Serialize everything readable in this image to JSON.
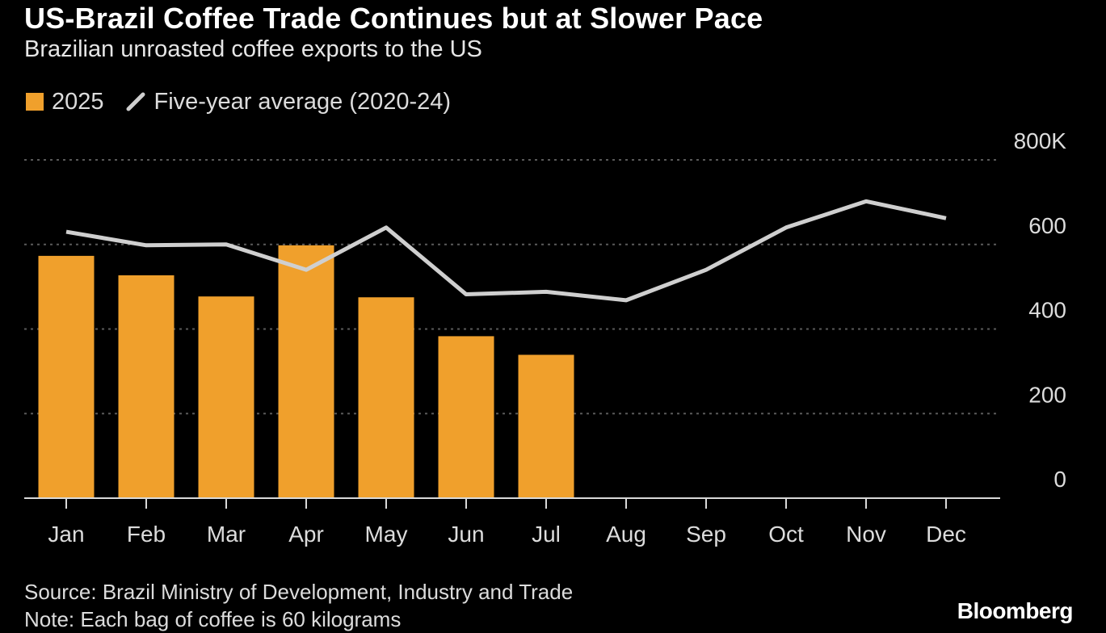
{
  "title": "US-Brazil Coffee Trade Continues but at Slower Pace",
  "subtitle": "Brazilian unroasted coffee exports to the US",
  "source": "Source: Brazil Ministry of Development, Industry and Trade",
  "note": "Note: Each bag of coffee is 60 kilograms",
  "brand": "Bloomberg",
  "colors": {
    "background": "#000000",
    "bar": "#f0a02c",
    "line": "#cfcfcf",
    "grid": "#5a5a5a",
    "axis": "#d9d9d9"
  },
  "chart_data": {
    "type": "bar",
    "categories": [
      "Jan",
      "Feb",
      "Mar",
      "Apr",
      "May",
      "Jun",
      "Jul",
      "Aug",
      "Sep",
      "Oct",
      "Nov",
      "Dec"
    ],
    "series": [
      {
        "name": "2025",
        "type": "bar",
        "values": [
          573,
          527,
          477,
          598,
          475,
          383,
          339,
          null,
          null,
          null,
          null,
          null
        ]
      },
      {
        "name": "Five-year average (2020-24)",
        "type": "line",
        "values": [
          630,
          598,
          600,
          540,
          640,
          482,
          488,
          468,
          540,
          640,
          702,
          662
        ]
      }
    ],
    "ylim": [
      0,
      800
    ],
    "yticks": [
      0,
      200,
      400,
      600,
      800
    ],
    "ytick_labels": [
      "0",
      "200",
      "400",
      "600",
      "800K"
    ],
    "y_axis_side": "right",
    "grid": true,
    "legend_position": "top-left",
    "xlabel": "",
    "ylabel": ""
  }
}
